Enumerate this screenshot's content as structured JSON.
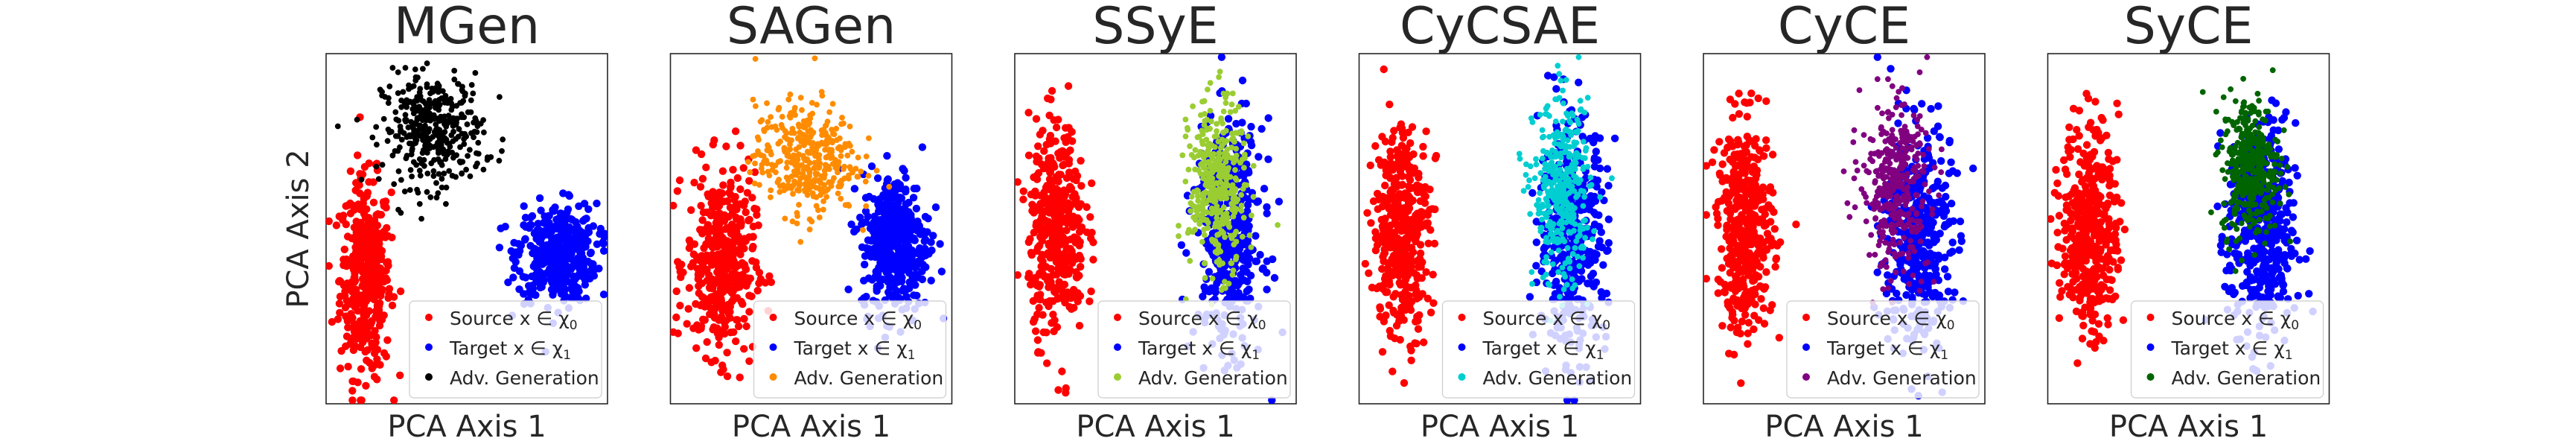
{
  "figure": {
    "shared_ylabel": "PCA Axis 2",
    "colors": {
      "source": "#ff0000",
      "target": "#0000ff"
    }
  },
  "chart_data": [
    {
      "type": "scatter",
      "title": "MGen",
      "xlabel": "PCA Axis 1",
      "ylabel": "PCA Axis 2",
      "xticks": [],
      "yticks": [],
      "legend_position": "lower-right",
      "generation_color": "#000000",
      "series": [
        {
          "name": "Source $x \\in \\chi_0$",
          "label_text": "Source x ∈ χ",
          "label_sub": "0",
          "color": "#ff0000",
          "center": [
            0.14,
            0.36
          ],
          "spread": [
            0.045,
            0.14
          ],
          "count": 420
        },
        {
          "name": "Target $x \\in \\chi_1$",
          "label_text": "Target x ∈ χ",
          "label_sub": "1",
          "color": "#0000ff",
          "center": [
            0.82,
            0.43
          ],
          "spread": [
            0.07,
            0.07
          ],
          "count": 420
        },
        {
          "name": "Adv. Generation",
          "label_text": "Adv. Generation",
          "label_sub": "",
          "color": "#000000",
          "center": [
            0.38,
            0.78
          ],
          "spread": [
            0.09,
            0.08
          ],
          "count": 380
        }
      ]
    },
    {
      "type": "scatter",
      "title": "SAGen",
      "xlabel": "PCA Axis 1",
      "ylabel": "",
      "xticks": [],
      "yticks": [],
      "legend_position": "lower-right",
      "generation_color": "#ff8c00",
      "series": [
        {
          "name": "Source $x \\in \\chi_0$",
          "label_text": "Source x ∈ χ",
          "label_sub": "0",
          "color": "#ff0000",
          "center": [
            0.18,
            0.4
          ],
          "spread": [
            0.06,
            0.13
          ],
          "count": 420
        },
        {
          "name": "Target $x \\in \\chi_1$",
          "label_text": "Target x ∈ χ",
          "label_sub": "1",
          "color": "#0000ff",
          "center": [
            0.8,
            0.46
          ],
          "spread": [
            0.06,
            0.1
          ],
          "count": 420
        },
        {
          "name": "Adv. Generation",
          "label_text": "Adv. Generation",
          "label_sub": "",
          "color": "#ff8c00",
          "center": [
            0.48,
            0.7
          ],
          "spread": [
            0.09,
            0.08
          ],
          "count": 380
        }
      ]
    },
    {
      "type": "scatter",
      "title": "SSyE",
      "xlabel": "PCA Axis 1",
      "ylabel": "",
      "xticks": [],
      "yticks": [],
      "legend_position": "lower-right",
      "generation_color": "#9acd32",
      "series": [
        {
          "name": "Source $x \\in \\chi_0$",
          "label_text": "Source x ∈ χ",
          "label_sub": "0",
          "color": "#ff0000",
          "center": [
            0.15,
            0.5
          ],
          "spread": [
            0.05,
            0.15
          ],
          "count": 420
        },
        {
          "name": "Target $x \\in \\chi_1$",
          "label_text": "Target x ∈ χ",
          "label_sub": "1",
          "color": "#0000ff",
          "center": [
            0.76,
            0.48
          ],
          "spread": [
            0.06,
            0.16
          ],
          "count": 420
        },
        {
          "name": "Adv. Generation",
          "label_text": "Adv. Generation",
          "label_sub": "",
          "color": "#9acd32",
          "center": [
            0.72,
            0.62
          ],
          "spread": [
            0.05,
            0.12
          ],
          "count": 380
        }
      ]
    },
    {
      "type": "scatter",
      "title": "CyCSAE",
      "xlabel": "PCA Axis 1",
      "ylabel": "",
      "xticks": [],
      "yticks": [],
      "legend_position": "lower-right",
      "generation_color": "#00ced1",
      "series": [
        {
          "name": "Source $x \\in \\chi_0$",
          "label_text": "Source x ∈ χ",
          "label_sub": "0",
          "color": "#ff0000",
          "center": [
            0.15,
            0.5
          ],
          "spread": [
            0.05,
            0.15
          ],
          "count": 420
        },
        {
          "name": "Target $x \\in \\chi_1$",
          "label_text": "Target x ∈ χ",
          "label_sub": "1",
          "color": "#0000ff",
          "center": [
            0.76,
            0.48
          ],
          "spread": [
            0.06,
            0.16
          ],
          "count": 420
        },
        {
          "name": "Adv. Generation",
          "label_text": "Adv. Generation",
          "label_sub": "",
          "color": "#00ced1",
          "center": [
            0.72,
            0.6
          ],
          "spread": [
            0.05,
            0.13
          ],
          "count": 380
        }
      ]
    },
    {
      "type": "scatter",
      "title": "CyCE",
      "xlabel": "PCA Axis 1",
      "ylabel": "",
      "xticks": [],
      "yticks": [],
      "legend_position": "lower-right",
      "generation_color": "#800080",
      "series": [
        {
          "name": "Source $x \\in \\chi_0$",
          "label_text": "Source x ∈ χ",
          "label_sub": "0",
          "color": "#ff0000",
          "center": [
            0.15,
            0.5
          ],
          "spread": [
            0.05,
            0.15
          ],
          "count": 420
        },
        {
          "name": "Target $x \\in \\chi_1$",
          "label_text": "Target x ∈ χ",
          "label_sub": "1",
          "color": "#0000ff",
          "center": [
            0.76,
            0.48
          ],
          "spread": [
            0.06,
            0.16
          ],
          "count": 420
        },
        {
          "name": "Adv. Generation",
          "label_text": "Adv. Generation",
          "label_sub": "",
          "color": "#800080",
          "center": [
            0.68,
            0.62
          ],
          "spread": [
            0.06,
            0.12
          ],
          "count": 380
        }
      ]
    },
    {
      "type": "scatter",
      "title": "SyCE",
      "xlabel": "PCA Axis 1",
      "ylabel": "",
      "xticks": [],
      "yticks": [],
      "legend_position": "lower-right",
      "generation_color": "#006400",
      "series": [
        {
          "name": "Source $x \\in \\chi_0$",
          "label_text": "Source x ∈ χ",
          "label_sub": "0",
          "color": "#ff0000",
          "center": [
            0.15,
            0.5
          ],
          "spread": [
            0.05,
            0.15
          ],
          "count": 420
        },
        {
          "name": "Target $x \\in \\chi_1$",
          "label_text": "Target x ∈ χ",
          "label_sub": "1",
          "color": "#0000ff",
          "center": [
            0.76,
            0.48
          ],
          "spread": [
            0.06,
            0.16
          ],
          "count": 420
        },
        {
          "name": "Adv. Generation",
          "label_text": "Adv. Generation",
          "label_sub": "",
          "color": "#006400",
          "center": [
            0.72,
            0.68
          ],
          "spread": [
            0.05,
            0.1
          ],
          "count": 380
        }
      ]
    }
  ]
}
